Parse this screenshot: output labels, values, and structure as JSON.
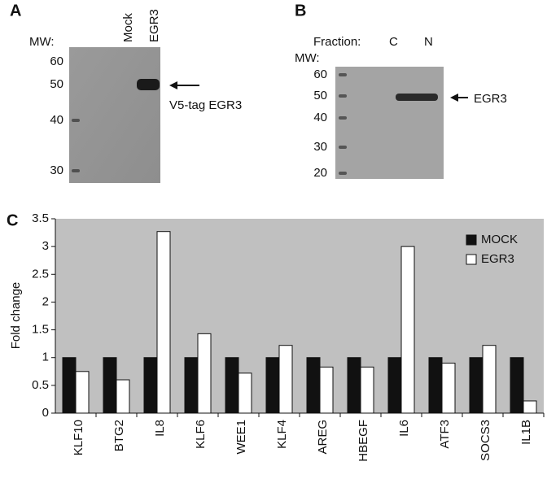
{
  "blots": [
    {
      "panel": "A",
      "mw_label": "MW:",
      "lane_labels": [
        "Mock",
        "EGR3"
      ],
      "mw_markers": [
        "60",
        "50",
        "40",
        "30"
      ],
      "annotation": "V5-tag EGR3"
    },
    {
      "panel": "B",
      "fraction_label": "Fraction:",
      "lane_labels": [
        "C",
        "N"
      ],
      "mw_label": "MW:",
      "mw_markers": [
        "60",
        "50",
        "40",
        "30",
        "20"
      ],
      "annotation": "EGR3"
    }
  ],
  "chart_data": {
    "type": "bar",
    "panel": "C",
    "ylabel": "Fold change",
    "categories": [
      "KLF10",
      "BTG2",
      "IL8",
      "KLF6",
      "WEE1",
      "KLF4",
      "AREG",
      "HBEGF",
      "IL6",
      "ATF3",
      "SOCS3",
      "IL1B"
    ],
    "series": [
      {
        "name": "MOCK",
        "color": "#111111",
        "values": [
          1,
          1,
          1,
          1,
          1,
          1,
          1,
          1,
          1,
          1,
          1,
          1
        ]
      },
      {
        "name": "EGR3",
        "color": "#ffffff",
        "values": [
          0.75,
          0.6,
          3.27,
          1.43,
          0.72,
          1.22,
          0.83,
          0.83,
          3.0,
          0.9,
          1.22,
          0.22
        ]
      }
    ],
    "ylim": [
      0,
      3.5
    ],
    "yticks": [
      0,
      0.5,
      1,
      1.5,
      2,
      2.5,
      3,
      3.5
    ],
    "grid": false,
    "legend": "top-right",
    "background": "#c0c0c0"
  }
}
